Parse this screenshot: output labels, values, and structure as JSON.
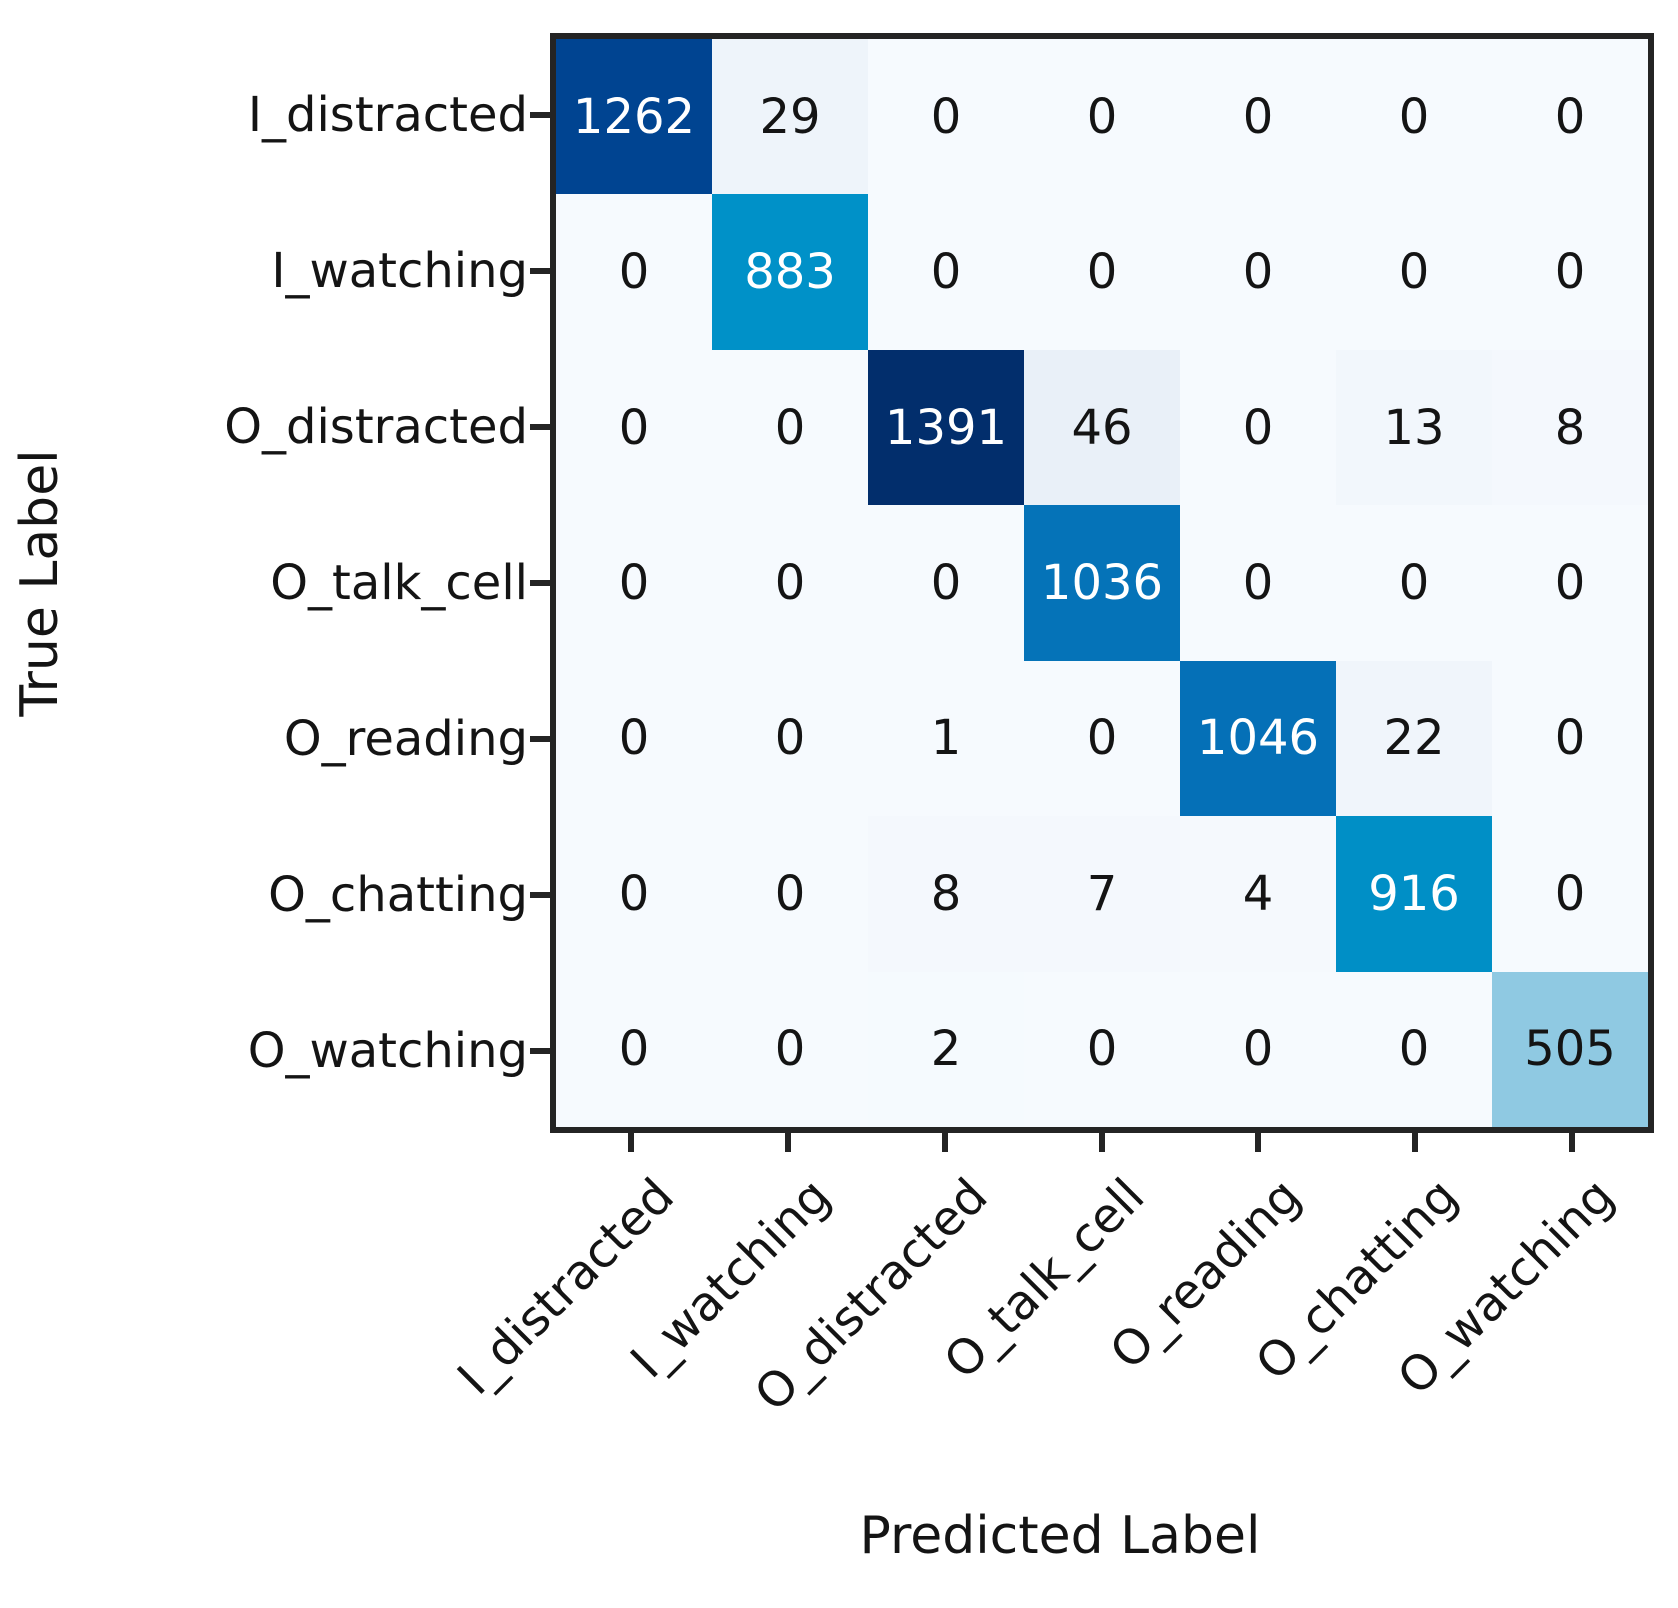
{
  "chart_data": {
    "type": "heatmap",
    "title": "",
    "xlabel": "Predicted Label",
    "ylabel": "True Label",
    "categories": [
      "I_distracted",
      "I_watching",
      "O_distracted",
      "O_talk_cell",
      "O_reading",
      "O_chatting",
      "O_watching"
    ],
    "matrix": [
      [
        1262,
        29,
        0,
        0,
        0,
        0,
        0
      ],
      [
        0,
        883,
        0,
        0,
        0,
        0,
        0
      ],
      [
        0,
        0,
        1391,
        46,
        0,
        13,
        8
      ],
      [
        0,
        0,
        0,
        1036,
        0,
        0,
        0
      ],
      [
        0,
        0,
        1,
        0,
        1046,
        22,
        0
      ],
      [
        0,
        0,
        8,
        7,
        4,
        916,
        0
      ],
      [
        0,
        0,
        2,
        0,
        0,
        0,
        505
      ]
    ],
    "vmin": 0,
    "vmax": 1391,
    "colormap": "Blues",
    "colormap_stops": [
      [
        0.0,
        "#f6fafe"
      ],
      [
        0.033,
        "#e9f0f8"
      ],
      [
        0.363,
        "#8fc9e2"
      ],
      [
        0.635,
        "#0091c8"
      ],
      [
        0.659,
        "#008fc6"
      ],
      [
        0.75,
        "#0571b7"
      ],
      [
        0.907,
        "#004491"
      ],
      [
        1.0,
        "#022e6c"
      ]
    ],
    "annotation_color_light": "#ffffff",
    "annotation_color_dark": "#141414",
    "light_text_threshold": 0.6,
    "grid": false,
    "legend": "none",
    "axes_box_color": "#242424"
  }
}
